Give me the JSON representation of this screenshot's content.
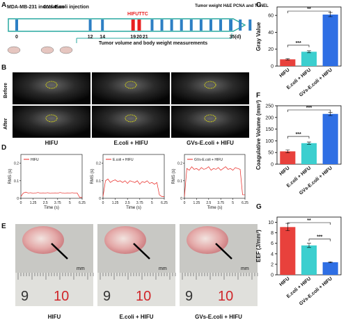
{
  "panel_labels": [
    "A",
    "B",
    "C",
    "D",
    "E",
    "F",
    "G"
  ],
  "timeline": {
    "events": [
      "MDA-MB-231 inoculation",
      "GVs-E.coli injection",
      "HIFU",
      "TTC",
      "Tumor weight H&E PCNA and TUNEL"
    ],
    "days": [
      "0",
      "12",
      "14",
      "19",
      "20",
      "21",
      "35(d)"
    ],
    "measurement": "Tumor volume and body weight measurements"
  },
  "ultrasound": {
    "rows": [
      "Before",
      "After"
    ]
  },
  "groups": [
    "HIFU",
    "E.coli + HIFU",
    "GVs-E.coli + HIFU"
  ],
  "photos": {
    "unit": "mm",
    "ruler_numbers": [
      "9",
      "10"
    ]
  },
  "chart_data": [
    {
      "type": "bar",
      "y_label": "Gray Value",
      "categories": [
        "HIFU",
        "E.coli + HIFU",
        "GVs-E.coli + HIFU"
      ],
      "values": [
        8,
        17,
        61
      ],
      "errors": [
        0.8,
        1.2,
        2.5
      ],
      "colors": [
        "#e8413c",
        "#3ccfcf",
        "#2f6fe4"
      ],
      "ylim": [
        0,
        70
      ],
      "yticks": [
        0,
        20,
        40,
        60
      ],
      "significance": [
        "***",
        "**"
      ]
    },
    {
      "type": "bar",
      "y_label": "Coagulative Volume (mm³)",
      "categories": [
        "HIFU",
        "E.coli + HIFU",
        "GVs-E.coli + HIFU"
      ],
      "values": [
        55,
        90,
        215
      ],
      "errors": [
        6,
        5,
        7
      ],
      "colors": [
        "#e8413c",
        "#3ccfcf",
        "#2f6fe4"
      ],
      "ylim": [
        0,
        250
      ],
      "yticks": [
        0,
        50,
        100,
        150,
        200,
        250
      ],
      "significance": [
        "***",
        "***"
      ]
    },
    {
      "type": "bar",
      "y_label": "EEF (J/mm³)",
      "categories": [
        "HIFU",
        "E.coli + HIFU",
        "GVs-E.coli + HIFU"
      ],
      "values": [
        9.1,
        5.6,
        2.4
      ],
      "errors": [
        0.7,
        0.4,
        0.1
      ],
      "colors": [
        "#e8413c",
        "#3ccfcf",
        "#2f6fe4"
      ],
      "ylim": [
        0,
        11
      ],
      "yticks": [
        0,
        2,
        4,
        6,
        8,
        10
      ],
      "significance": [
        "**",
        "***"
      ]
    },
    {
      "type": "line",
      "y_label": "RMS (s)",
      "x_label": "Time (s)",
      "x": [
        0,
        0.25,
        0.5,
        0.75,
        1,
        1.25,
        1.5,
        1.75,
        2,
        2.25,
        2.5,
        2.75,
        3,
        3.25,
        3.5,
        3.75,
        4,
        4.25,
        4.5,
        4.75,
        5,
        5.25,
        5.5,
        5.75,
        6,
        6.25
      ],
      "series": [
        {
          "name": "HIFU",
          "color": "#e8211c",
          "values": [
            0.01,
            0.03,
            0.035,
            0.03,
            0.032,
            0.028,
            0.03,
            0.033,
            0.029,
            0.031,
            0.03,
            0.032,
            0.028,
            0.03,
            0.031,
            0.029,
            0.033,
            0.03,
            0.028,
            0.031,
            0.03,
            0.032,
            0.029,
            0.03,
            0.005,
            0.005
          ]
        }
      ],
      "xlim": [
        0,
        6.25
      ],
      "xticks": [
        0,
        1.25,
        2.5,
        3.75,
        5,
        6.25
      ],
      "ylim": [
        0,
        0.25
      ],
      "yticks": [
        0,
        0.1,
        0.2
      ]
    },
    {
      "type": "line",
      "y_label": "RMS (s)",
      "x_label": "Time (s)",
      "x": [
        0,
        0.25,
        0.5,
        0.75,
        1,
        1.25,
        1.5,
        1.75,
        2,
        2.25,
        2.5,
        2.75,
        3,
        3.25,
        3.5,
        3.75,
        4,
        4.25,
        4.5,
        4.75,
        5,
        5.25,
        5.5,
        5.75,
        6,
        6.25
      ],
      "series": [
        {
          "name": "E.coli + HIFU",
          "color": "#e8211c",
          "values": [
            0.01,
            0.1,
            0.11,
            0.09,
            0.1,
            0.105,
            0.095,
            0.1,
            0.09,
            0.1,
            0.085,
            0.1,
            0.095,
            0.09,
            0.1,
            0.08,
            0.095,
            0.09,
            0.1,
            0.085,
            0.09,
            0.08,
            0.09,
            0.02,
            0.01,
            0.01
          ]
        }
      ],
      "xlim": [
        0,
        6.25
      ],
      "xticks": [
        0,
        1.25,
        2.5,
        3.75,
        5,
        6.25
      ],
      "ylim": [
        0,
        0.25
      ],
      "yticks": [
        0,
        0.1,
        0.2
      ]
    },
    {
      "type": "line",
      "y_label": "RMS (s)",
      "x_label": "Time (s)",
      "x": [
        0,
        0.25,
        0.5,
        0.75,
        1,
        1.25,
        1.5,
        1.75,
        2,
        2.25,
        2.5,
        2.75,
        3,
        3.25,
        3.5,
        3.75,
        4,
        4.25,
        4.5,
        4.75,
        5,
        5.25,
        5.5,
        5.75,
        6,
        6.25
      ],
      "series": [
        {
          "name": "GVs-E.coli + HIFU",
          "color": "#e8211c",
          "values": [
            0.01,
            0.17,
            0.16,
            0.18,
            0.165,
            0.17,
            0.16,
            0.175,
            0.165,
            0.17,
            0.18,
            0.16,
            0.17,
            0.165,
            0.175,
            0.16,
            0.17,
            0.18,
            0.165,
            0.17,
            0.16,
            0.175,
            0.17,
            0.165,
            0.02,
            0.02
          ]
        }
      ],
      "xlim": [
        0,
        6.25
      ],
      "xticks": [
        0,
        1.25,
        2.5,
        3.75,
        5,
        6.25
      ],
      "ylim": [
        0,
        0.25
      ],
      "yticks": [
        0,
        0.1,
        0.2
      ]
    }
  ]
}
